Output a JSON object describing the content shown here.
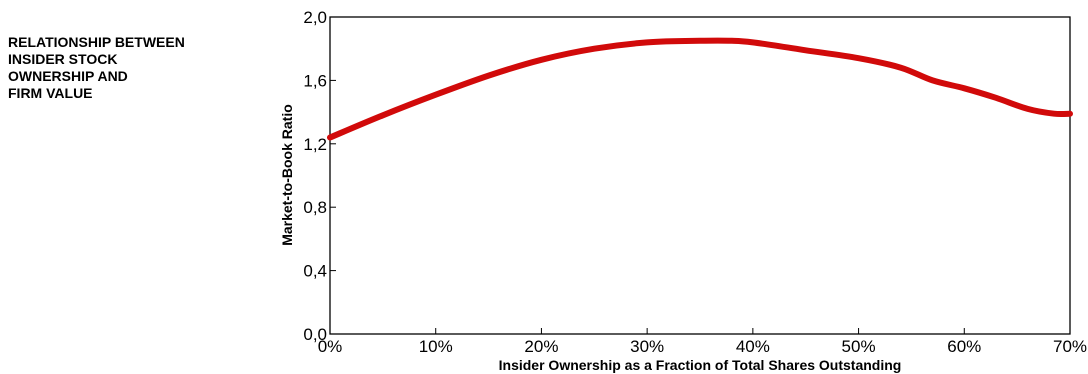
{
  "side_title_lines": [
    "RELATIONSHIP BETWEEN",
    "INSIDER STOCK",
    "OWNERSHIP AND",
    "FIRM VALUE"
  ],
  "chart_data": {
    "type": "line",
    "title": "RELATIONSHIP BETWEEN INSIDER STOCK OWNERSHIP AND FIRM VALUE",
    "xlabel": "Insider Ownership as a Fraction of Total Shares Outstanding",
    "ylabel": "Market-to-Book Ratio",
    "xlim": [
      0,
      70
    ],
    "ylim": [
      0,
      2.0
    ],
    "x_ticks": [
      0,
      10,
      20,
      30,
      40,
      50,
      60,
      70
    ],
    "x_tick_labels": [
      "0%",
      "10%",
      "20%",
      "30%",
      "40%",
      "50%",
      "60%",
      "70%"
    ],
    "y_ticks": [
      0,
      0.4,
      0.8,
      1.2,
      1.6,
      2.0
    ],
    "y_tick_labels": [
      "0,0",
      "0,4",
      "0,8",
      "1,2",
      "1,6",
      "2,0"
    ],
    "grid": false,
    "line_color": "#d10a0a",
    "series": [
      {
        "x": [
          0,
          5,
          10,
          15,
          20,
          25,
          30,
          35,
          38,
          40,
          45,
          50,
          54,
          57,
          60,
          63,
          66,
          68.5,
          70
        ],
        "y": [
          1.24,
          1.38,
          1.51,
          1.63,
          1.73,
          1.8,
          1.84,
          1.85,
          1.85,
          1.84,
          1.79,
          1.74,
          1.68,
          1.6,
          1.55,
          1.49,
          1.42,
          1.39,
          1.39
        ]
      }
    ]
  }
}
